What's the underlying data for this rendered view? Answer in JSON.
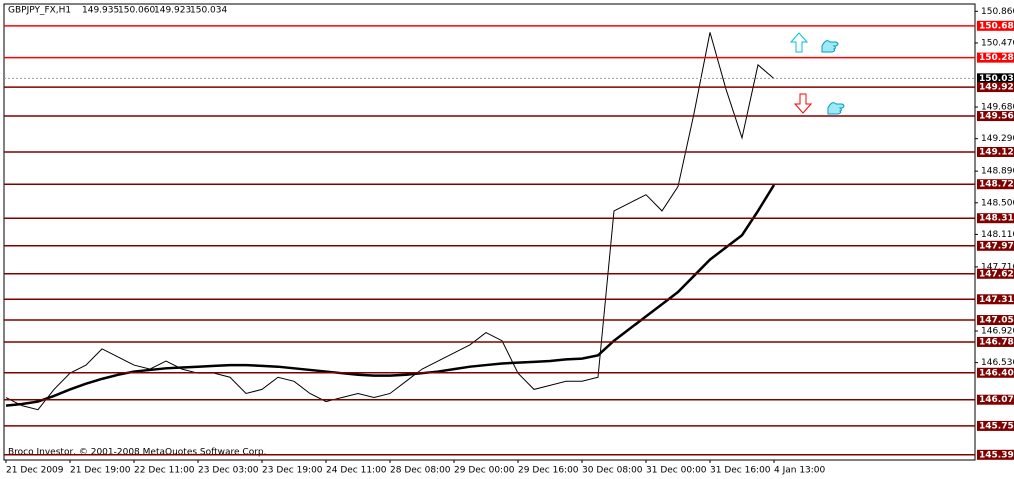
{
  "chart_data": {
    "type": "candlestick",
    "title": "GBPJPY_FX,H1",
    "ohlc_header": [
      "149.935",
      "150.060",
      "149.923",
      "150.034"
    ],
    "copyright": "Broco Investor, © 2001-2008 MetaQuotes Software Corp.",
    "ylim": [
      145.33,
      150.95
    ],
    "yticks": [
      {
        "value": 150.86,
        "label": "150.860"
      },
      {
        "value": 150.47,
        "label": "150.470"
      },
      {
        "value": 149.68,
        "label": "149.680"
      },
      {
        "value": 149.29,
        "label": "149.290"
      },
      {
        "value": 148.89,
        "label": "148.890"
      },
      {
        "value": 148.5,
        "label": "148.500"
      },
      {
        "value": 148.11,
        "label": "148.110"
      },
      {
        "value": 147.71,
        "label": "147.710"
      },
      {
        "value": 146.92,
        "label": "146.920"
      },
      {
        "value": 146.53,
        "label": "146.530"
      }
    ],
    "xticks": [
      "21 Dec 2009",
      "21 Dec 19:00",
      "22 Dec 11:00",
      "23 Dec 03:00",
      "23 Dec 19:00",
      "24 Dec 11:00",
      "28 Dec 08:00",
      "29 Dec 00:00",
      "29 Dec 16:00",
      "30 Dec 08:00",
      "31 Dec 00:00",
      "31 Dec 16:00",
      "4 Jan 13:00"
    ],
    "levels": [
      {
        "value": 150.681,
        "color": "#ff0000"
      },
      {
        "value": 150.289,
        "color": "#ff0000"
      },
      {
        "value": 149.926,
        "color": "#800000"
      },
      {
        "value": 149.569,
        "color": "#800000"
      },
      {
        "value": 149.126,
        "color": "#800000"
      },
      {
        "value": 148.729,
        "color": "#800000"
      },
      {
        "value": 148.31,
        "label": "148.310",
        "color": "#800000"
      },
      {
        "value": 147.97,
        "label": "147.970",
        "color": "#800000"
      },
      {
        "value": 147.625,
        "color": "#800000"
      },
      {
        "value": 147.311,
        "color": "#800000"
      },
      {
        "value": 147.055,
        "color": "#800000"
      },
      {
        "value": 146.785,
        "color": "#800000"
      },
      {
        "value": 146.405,
        "color": "#800000"
      },
      {
        "value": 146.073,
        "color": "#800000"
      },
      {
        "value": 145.75,
        "label": "145.750",
        "color": "#800000"
      },
      {
        "value": 145.394,
        "color": "#800000"
      }
    ],
    "price": {
      "value": 150.034
    },
    "series": [
      {
        "color": "#000000",
        "width": 1,
        "values": [
          146.1,
          146.0,
          145.95,
          146.2,
          146.4,
          146.5,
          146.7,
          146.6,
          146.5,
          146.45,
          146.55,
          146.45,
          146.4,
          146.4,
          146.35,
          146.15,
          146.2,
          146.35,
          146.3,
          146.15,
          146.05,
          146.1,
          146.15,
          146.1,
          146.15,
          146.3,
          146.45,
          146.55,
          146.65,
          146.75,
          146.9,
          146.8,
          146.4,
          146.2,
          146.25,
          146.3,
          146.3,
          146.35,
          148.4,
          148.5,
          148.6,
          148.4,
          148.7,
          149.6,
          150.6,
          149.9,
          149.3,
          150.2,
          150.03
        ]
      },
      {
        "color": "#000000",
        "width": 2.5,
        "values": [
          146.0,
          146.02,
          146.05,
          146.12,
          146.2,
          146.27,
          146.33,
          146.38,
          146.42,
          146.44,
          146.46,
          146.47,
          146.48,
          146.49,
          146.5,
          146.5,
          146.49,
          146.48,
          146.46,
          146.44,
          146.42,
          146.4,
          146.38,
          146.37,
          146.37,
          146.38,
          146.4,
          146.42,
          146.45,
          146.48,
          146.5,
          146.52,
          146.53,
          146.54,
          146.55,
          146.57,
          146.58,
          146.62,
          146.8,
          146.95,
          147.1,
          147.25,
          147.4,
          147.6,
          147.8,
          147.95,
          148.1,
          148.4,
          148.72
        ]
      }
    ]
  }
}
